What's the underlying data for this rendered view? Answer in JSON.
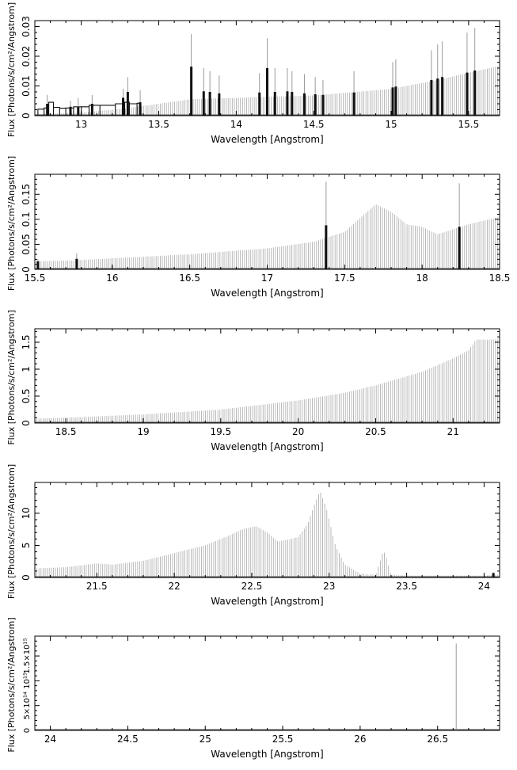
{
  "chart_data": [
    {
      "type": "bar",
      "xlabel": "Wavelength [Angstrom]",
      "ylabel": "Flux [Photons/s/cm²/Angstrom]",
      "xlim": [
        12.7,
        15.7
      ],
      "ylim": [
        0,
        0.032
      ],
      "xticks": [
        13,
        13.5,
        14,
        14.5,
        15,
        15.5
      ],
      "xtick_labels": [
        "13",
        "13.5",
        "14",
        "14.5",
        "15",
        "15.5"
      ],
      "yticks": [
        0,
        0.01,
        0.02,
        0.03
      ],
      "ytick_labels": [
        "0",
        "0.01",
        "0.02",
        "0.03"
      ],
      "continuum": [
        [
          12.7,
          0.0005
        ],
        [
          13.0,
          0.001
        ],
        [
          13.3,
          0.0025
        ],
        [
          13.5,
          0.004
        ],
        [
          13.7,
          0.0055
        ],
        [
          14.0,
          0.006
        ],
        [
          14.5,
          0.0068
        ],
        [
          15.0,
          0.009
        ],
        [
          15.3,
          0.012
        ],
        [
          15.7,
          0.0168
        ]
      ],
      "step_bins": [
        [
          12.72,
          0.0022
        ],
        [
          12.76,
          0.0026
        ],
        [
          12.79,
          0.0045
        ],
        [
          12.82,
          0.0028
        ],
        [
          12.86,
          0.0025
        ],
        [
          12.9,
          0.0026
        ],
        [
          12.95,
          0.003
        ],
        [
          13.0,
          0.003
        ],
        [
          13.05,
          0.0035
        ],
        [
          13.12,
          0.0035
        ],
        [
          13.22,
          0.004
        ],
        [
          13.28,
          0.0045
        ],
        [
          13.31,
          0.004
        ],
        [
          13.36,
          0.0042
        ]
      ],
      "lines": [
        {
          "x": 12.78,
          "top": 0.007,
          "bar": 0.004
        },
        {
          "x": 12.93,
          "top": 0.005,
          "bar": 0.003
        },
        {
          "x": 12.98,
          "top": 0.006,
          "bar": 0.003
        },
        {
          "x": 13.07,
          "top": 0.007,
          "bar": 0.004
        },
        {
          "x": 13.27,
          "top": 0.009,
          "bar": 0.006
        },
        {
          "x": 13.3,
          "top": 0.013,
          "bar": 0.008
        },
        {
          "x": 13.38,
          "top": 0.0085,
          "bar": 0.0045
        },
        {
          "x": 13.71,
          "top": 0.0275,
          "bar": 0.0165
        },
        {
          "x": 13.79,
          "top": 0.016,
          "bar": 0.0082
        },
        {
          "x": 13.83,
          "top": 0.015,
          "bar": 0.008
        },
        {
          "x": 13.89,
          "top": 0.0135,
          "bar": 0.0075
        },
        {
          "x": 14.15,
          "top": 0.0143,
          "bar": 0.0078
        },
        {
          "x": 14.2,
          "top": 0.026,
          "bar": 0.016
        },
        {
          "x": 14.25,
          "top": 0.016,
          "bar": 0.008
        },
        {
          "x": 14.33,
          "top": 0.016,
          "bar": 0.0082
        },
        {
          "x": 14.36,
          "top": 0.015,
          "bar": 0.008
        },
        {
          "x": 14.44,
          "top": 0.014,
          "bar": 0.0075
        },
        {
          "x": 14.51,
          "top": 0.013,
          "bar": 0.0072
        },
        {
          "x": 14.56,
          "top": 0.012,
          "bar": 0.007
        },
        {
          "x": 14.76,
          "top": 0.015,
          "bar": 0.0078
        },
        {
          "x": 15.01,
          "top": 0.018,
          "bar": 0.0095
        },
        {
          "x": 15.03,
          "top": 0.019,
          "bar": 0.0098
        },
        {
          "x": 15.26,
          "top": 0.022,
          "bar": 0.012
        },
        {
          "x": 15.3,
          "top": 0.024,
          "bar": 0.0125
        },
        {
          "x": 15.33,
          "top": 0.025,
          "bar": 0.013
        },
        {
          "x": 15.49,
          "top": 0.028,
          "bar": 0.0145
        },
        {
          "x": 15.54,
          "top": 0.0295,
          "bar": 0.0152
        }
      ]
    },
    {
      "type": "bar",
      "xlabel": "Wavelength [Angstrom]",
      "ylabel": "Flux [Photons/s/cm²/Angstrom]",
      "xlim": [
        15.5,
        18.5
      ],
      "ylim": [
        0,
        0.19
      ],
      "xticks": [
        15.5,
        16,
        16.5,
        17,
        17.5,
        18,
        18.5
      ],
      "xtick_labels": [
        "15.5",
        "16",
        "16.5",
        "17",
        "17.5",
        "18",
        "18.5"
      ],
      "yticks": [
        0,
        0.05,
        0.1,
        0.15
      ],
      "ytick_labels": [
        "0",
        "0.05",
        "0.1",
        "0.15"
      ],
      "continuum": [
        [
          15.5,
          0.016
        ],
        [
          15.75,
          0.018
        ],
        [
          16.0,
          0.022
        ],
        [
          16.5,
          0.03
        ],
        [
          17.0,
          0.042
        ],
        [
          17.3,
          0.055
        ],
        [
          17.5,
          0.075
        ],
        [
          17.7,
          0.13
        ],
        [
          17.8,
          0.115
        ],
        [
          17.9,
          0.09
        ],
        [
          18.0,
          0.085
        ],
        [
          18.1,
          0.07
        ],
        [
          18.3,
          0.09
        ],
        [
          18.5,
          0.105
        ]
      ],
      "lines": [
        {
          "x": 15.52,
          "top": 0.02,
          "bar": 0.016
        },
        {
          "x": 15.77,
          "top": 0.032,
          "bar": 0.021
        },
        {
          "x": 17.38,
          "top": 0.175,
          "bar": 0.088
        },
        {
          "x": 18.24,
          "top": 0.172,
          "bar": 0.085
        }
      ]
    },
    {
      "type": "bar",
      "xlabel": "Wavelength [Angstrom]",
      "ylabel": "Flux [Photons/s/cm²/Angstrom]",
      "xlim": [
        18.3,
        21.3
      ],
      "ylim": [
        0,
        1.75
      ],
      "xticks": [
        18.5,
        19,
        19.5,
        20,
        20.5,
        21
      ],
      "xtick_labels": [
        "18.5",
        "19",
        "19.5",
        "20",
        "20.5",
        "21"
      ],
      "yticks": [
        0,
        0.5,
        1,
        1.5
      ],
      "ytick_labels": [
        "0",
        "0.5",
        "1",
        "1.5"
      ],
      "continuum": [
        [
          18.3,
          0.08
        ],
        [
          18.5,
          0.1
        ],
        [
          19.0,
          0.16
        ],
        [
          19.5,
          0.25
        ],
        [
          20.0,
          0.42
        ],
        [
          20.3,
          0.56
        ],
        [
          20.5,
          0.7
        ],
        [
          20.8,
          0.95
        ],
        [
          21.0,
          1.2
        ],
        [
          21.1,
          1.35
        ],
        [
          21.15,
          1.55
        ],
        [
          21.3,
          1.55
        ]
      ],
      "lines": []
    },
    {
      "type": "bar",
      "xlabel": "Wavelength [Angstrom]",
      "ylabel": "Flux [Photons/s/cm²/Angstrom]",
      "xlim": [
        21.1,
        24.1
      ],
      "ylim": [
        0,
        14.8
      ],
      "xticks": [
        21.5,
        22,
        22.5,
        23,
        23.5,
        24
      ],
      "xtick_labels": [
        "21.5",
        "22",
        "22.5",
        "23",
        "23.5",
        "24"
      ],
      "yticks": [
        0,
        5,
        10
      ],
      "ytick_labels": [
        "0",
        "5",
        "10"
      ],
      "continuum": [
        [
          21.1,
          1.4
        ],
        [
          21.3,
          1.6
        ],
        [
          21.5,
          2.2
        ],
        [
          21.6,
          2.0
        ],
        [
          21.8,
          2.6
        ],
        [
          22.0,
          3.8
        ],
        [
          22.2,
          5.0
        ],
        [
          22.35,
          6.5
        ],
        [
          22.45,
          7.6
        ],
        [
          22.53,
          8.0
        ],
        [
          22.6,
          7.0
        ],
        [
          22.67,
          5.6
        ],
        [
          22.75,
          6.0
        ],
        [
          22.8,
          6.3
        ],
        [
          22.86,
          8.3
        ],
        [
          22.9,
          11.0
        ],
        [
          22.94,
          13.5
        ],
        [
          22.98,
          11.0
        ],
        [
          23.04,
          5.0
        ],
        [
          23.1,
          2.0
        ],
        [
          23.2,
          0.6
        ],
        [
          23.3,
          0.4
        ],
        [
          23.34,
          3.4
        ],
        [
          23.35,
          4.3
        ],
        [
          23.37,
          3.0
        ],
        [
          23.4,
          0.4
        ],
        [
          23.5,
          0.3
        ],
        [
          24.0,
          0.3
        ],
        [
          24.1,
          0.4
        ]
      ],
      "lines": [
        {
          "x": 24.06,
          "top": 0.8,
          "bar": 0.7
        }
      ]
    },
    {
      "type": "bar",
      "xlabel": "Wavelength [Angstrom]",
      "ylabel": "Flux [Photons/s/cm²/Angstrom]",
      "xlim": [
        23.9,
        26.9
      ],
      "ylim": [
        0,
        1900000000000000.0
      ],
      "xticks": [
        24,
        24.5,
        25,
        25.5,
        26,
        26.5
      ],
      "xtick_labels": [
        "24",
        "24.5",
        "25",
        "25.5",
        "26",
        "26.5"
      ],
      "yticks": [
        0,
        500000000000000.0,
        1000000000000000.0,
        1500000000000000.0
      ],
      "ytick_labels": [
        "0",
        "5×10¹⁴",
        "10¹⁵",
        "1.5×10¹⁵"
      ],
      "continuum": [],
      "lines": [
        {
          "x": 26.62,
          "top": 1750000000000000.0,
          "bar": 0
        }
      ]
    }
  ]
}
